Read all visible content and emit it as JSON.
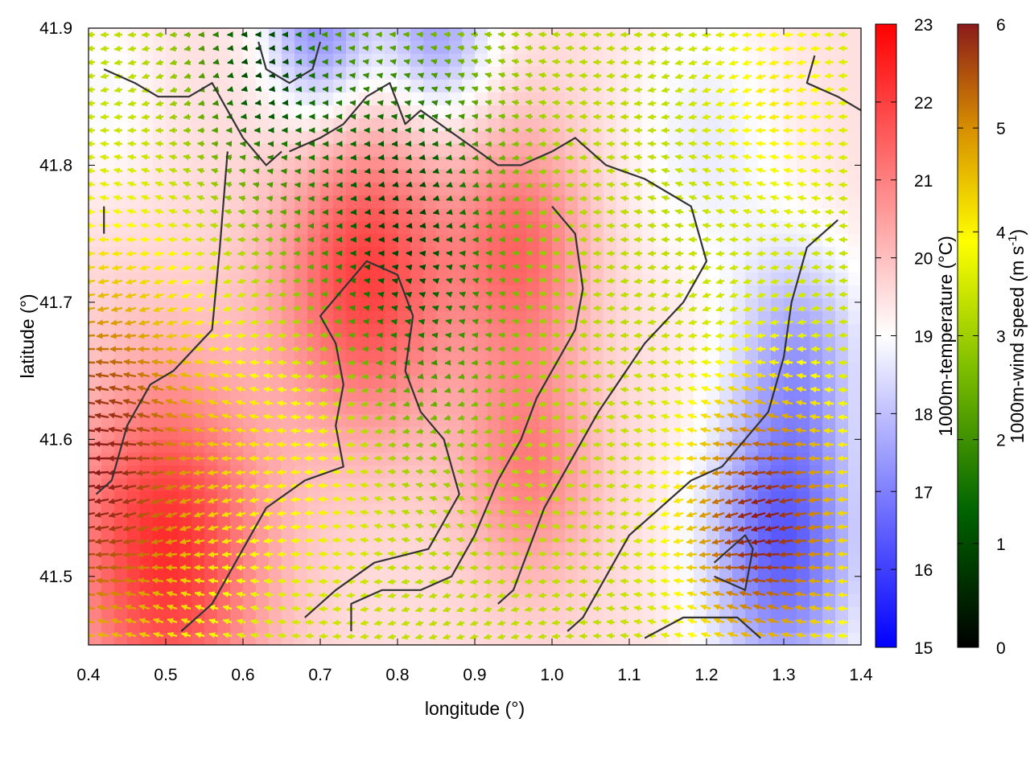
{
  "chart_data": {
    "type": "heatmap",
    "xlabel": "longitude (°)",
    "ylabel": "latitude (°)",
    "xlim": [
      0.4,
      1.4
    ],
    "ylim": [
      41.45,
      41.9
    ],
    "x_ticks": [
      "0.4",
      "0.5",
      "0.6",
      "0.7",
      "0.8",
      "0.9",
      "1.0",
      "1.1",
      "1.2",
      "1.3",
      "1.4"
    ],
    "y_ticks": [
      "41.5",
      "41.6",
      "41.7",
      "41.8",
      "41.9"
    ],
    "grid": false,
    "temperature_colorbar": {
      "label": "1000m-temperature (°C)",
      "range": [
        15,
        23
      ],
      "ticks": [
        "15",
        "16",
        "17",
        "18",
        "19",
        "20",
        "21",
        "22",
        "23"
      ],
      "colors": [
        "#0000ff",
        "#ffffff",
        "#ff0000"
      ]
    },
    "wind_colorbar": {
      "label_main": "1000m-wind speed (m s",
      "label_exp": "-1",
      "label_end": ")",
      "range": [
        0,
        6
      ],
      "ticks": [
        "0",
        "1",
        "2",
        "3",
        "4",
        "5",
        "6"
      ],
      "colors": [
        "#000000",
        "#006400",
        "#7fbf00",
        "#ffff00",
        "#d89000",
        "#8b1a1a"
      ]
    },
    "temperature_field": {
      "base": 19.5,
      "features": [
        {
          "lon": 0.76,
          "lat": 41.72,
          "sigma": 0.08,
          "amp": 2.5
        },
        {
          "lon": 0.96,
          "lat": 41.74,
          "sigma": 0.06,
          "amp": 1.8
        },
        {
          "lon": 0.5,
          "lat": 41.52,
          "sigma": 0.09,
          "amp": 2.8
        },
        {
          "lon": 0.97,
          "lat": 41.58,
          "sigma": 0.06,
          "amp": 1.5
        },
        {
          "lon": 0.7,
          "lat": 41.9,
          "sigma": 0.05,
          "amp": -2.3
        },
        {
          "lon": 0.85,
          "lat": 41.9,
          "sigma": 0.05,
          "amp": -2.0
        },
        {
          "lon": 1.3,
          "lat": 41.52,
          "sigma": 0.07,
          "amp": -3.0
        },
        {
          "lon": 1.32,
          "lat": 41.66,
          "sigma": 0.06,
          "amp": -1.8
        },
        {
          "lon": 1.2,
          "lat": 41.82,
          "sigma": 0.07,
          "amp": -0.8
        },
        {
          "lon": 0.42,
          "lat": 41.85,
          "sigma": 0.05,
          "amp": -0.6
        }
      ]
    },
    "wind_field": {
      "base_speed": 3.0,
      "direction_deg": 180,
      "features": [
        {
          "lon": 0.8,
          "lat": 41.75,
          "sigma": 0.1,
          "amp": -2.4
        },
        {
          "lon": 0.62,
          "lat": 41.88,
          "sigma": 0.06,
          "amp": -2.0
        },
        {
          "lon": 0.42,
          "lat": 41.58,
          "sigma": 0.1,
          "amp": 3.0
        },
        {
          "lon": 1.28,
          "lat": 41.54,
          "sigma": 0.07,
          "amp": 3.0
        },
        {
          "lon": 1.3,
          "lat": 41.85,
          "sigma": 0.06,
          "amp": 0.8
        },
        {
          "lon": 0.7,
          "lat": 41.62,
          "sigma": 0.08,
          "amp": 1.0
        }
      ]
    },
    "contours": [
      [
        [
          0.42,
          41.87
        ],
        [
          0.46,
          41.86
        ],
        [
          0.49,
          41.85
        ],
        [
          0.53,
          41.85
        ],
        [
          0.56,
          41.86
        ],
        [
          0.58,
          41.84
        ],
        [
          0.6,
          41.82
        ],
        [
          0.63,
          41.8
        ],
        [
          0.65,
          41.81
        ]
      ],
      [
        [
          0.62,
          41.89
        ],
        [
          0.63,
          41.87
        ],
        [
          0.66,
          41.86
        ],
        [
          0.69,
          41.87
        ],
        [
          0.7,
          41.89
        ]
      ],
      [
        [
          0.66,
          41.81
        ],
        [
          0.7,
          41.82
        ],
        [
          0.73,
          41.83
        ],
        [
          0.76,
          41.85
        ],
        [
          0.79,
          41.86
        ],
        [
          0.81,
          41.83
        ],
        [
          0.83,
          41.84
        ],
        [
          0.88,
          41.82
        ],
        [
          0.93,
          41.8
        ],
        [
          0.96,
          41.8
        ],
        [
          1.0,
          41.81
        ],
        [
          1.03,
          41.82
        ],
        [
          1.07,
          41.8
        ],
        [
          1.12,
          41.79
        ],
        [
          1.18,
          41.77
        ],
        [
          1.2,
          41.73
        ],
        [
          1.17,
          41.7
        ],
        [
          1.12,
          41.67
        ],
        [
          1.06,
          41.62
        ],
        [
          1.02,
          41.58
        ],
        [
          0.99,
          41.55
        ],
        [
          0.97,
          41.52
        ],
        [
          0.95,
          41.49
        ],
        [
          0.93,
          41.48
        ]
      ],
      [
        [
          0.58,
          41.81
        ],
        [
          0.57,
          41.74
        ],
        [
          0.56,
          41.68
        ],
        [
          0.51,
          41.65
        ],
        [
          0.48,
          41.64
        ],
        [
          0.45,
          41.61
        ],
        [
          0.43,
          41.57
        ],
        [
          0.41,
          41.56
        ]
      ],
      [
        [
          0.52,
          41.46
        ],
        [
          0.56,
          41.48
        ],
        [
          0.6,
          41.52
        ],
        [
          0.63,
          41.55
        ],
        [
          0.68,
          41.57
        ],
        [
          0.73,
          41.58
        ],
        [
          0.72,
          41.61
        ],
        [
          0.73,
          41.64
        ],
        [
          0.72,
          41.67
        ],
        [
          0.7,
          41.69
        ],
        [
          0.73,
          41.71
        ],
        [
          0.76,
          41.73
        ],
        [
          0.8,
          41.72
        ],
        [
          0.82,
          41.69
        ],
        [
          0.81,
          41.65
        ],
        [
          0.83,
          41.62
        ],
        [
          0.86,
          41.6
        ],
        [
          0.88,
          41.56
        ],
        [
          0.84,
          41.52
        ],
        [
          0.77,
          41.51
        ],
        [
          0.72,
          41.49
        ],
        [
          0.68,
          41.47
        ]
      ],
      [
        [
          1.0,
          41.77
        ],
        [
          1.03,
          41.75
        ],
        [
          1.04,
          41.71
        ],
        [
          1.03,
          41.68
        ],
        [
          1.0,
          41.65
        ],
        [
          0.98,
          41.63
        ],
        [
          0.96,
          41.6
        ],
        [
          0.93,
          41.57
        ],
        [
          0.9,
          41.53
        ],
        [
          0.87,
          41.5
        ],
        [
          0.83,
          41.49
        ],
        [
          0.78,
          41.49
        ],
        [
          0.74,
          41.48
        ],
        [
          0.74,
          41.46
        ]
      ],
      [
        [
          1.37,
          41.76
        ],
        [
          1.33,
          41.74
        ],
        [
          1.31,
          41.7
        ],
        [
          1.3,
          41.66
        ],
        [
          1.28,
          41.62
        ],
        [
          1.25,
          41.6
        ],
        [
          1.22,
          41.58
        ],
        [
          1.18,
          41.57
        ],
        [
          1.14,
          41.55
        ],
        [
          1.1,
          41.53
        ],
        [
          1.07,
          41.5
        ],
        [
          1.04,
          41.47
        ],
        [
          1.02,
          41.46
        ]
      ],
      [
        [
          1.21,
          41.51
        ],
        [
          1.25,
          41.53
        ],
        [
          1.26,
          41.52
        ],
        [
          1.25,
          41.49
        ],
        [
          1.21,
          41.5
        ]
      ],
      [
        [
          1.12,
          41.455
        ],
        [
          1.17,
          41.47
        ],
        [
          1.24,
          41.47
        ],
        [
          1.27,
          41.455
        ]
      ],
      [
        [
          1.34,
          41.88
        ],
        [
          1.33,
          41.86
        ],
        [
          1.37,
          41.85
        ],
        [
          1.4,
          41.84
        ]
      ],
      [
        [
          0.42,
          41.77
        ],
        [
          0.42,
          41.75
        ]
      ]
    ]
  }
}
